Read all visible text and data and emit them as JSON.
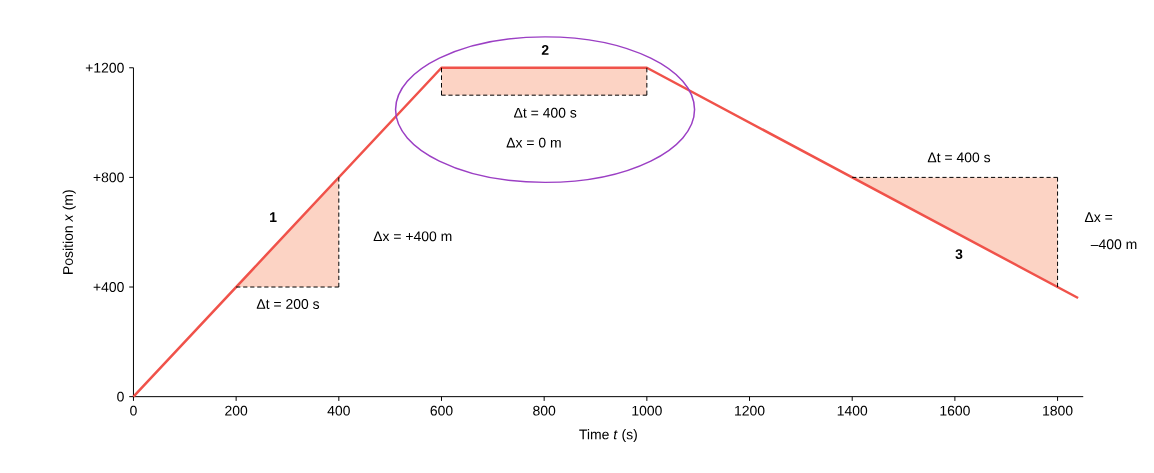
{
  "chart_data": {
    "type": "line",
    "xlabel": "Time *t* (s)",
    "ylabel": "Position *x* (m)",
    "xlim": [
      0,
      1850
    ],
    "ylim": [
      0,
      1200
    ],
    "xticks": [
      0,
      200,
      400,
      600,
      800,
      1000,
      1200,
      1400,
      1600,
      1800
    ],
    "yticks": [
      0,
      {
        "value": 400,
        "label": "+400"
      },
      {
        "value": 800,
        "label": "+800"
      },
      {
        "value": 1200,
        "label": "+1200"
      }
    ],
    "grid": false,
    "marker": "none",
    "series": [
      {
        "color": "#f0524a",
        "x": [
          0,
          600,
          1000,
          1840
        ],
        "values": [
          0,
          1200,
          1200,
          360
        ],
        "line_style": "solid"
      },
      {
        "color": "#000000",
        "x": [
          200,
          400
        ],
        "values": [
          400,
          400
        ],
        "lower": [
          400,
          400
        ],
        "upper": [
          400,
          800
        ],
        "line_style": "dashed"
      },
      {
        "color": "#000000",
        "x": [
          400,
          400
        ],
        "values": [
          400,
          800
        ],
        "line_style": "dashed"
      },
      {
        "color": "#000000",
        "x": [
          600,
          1000
        ],
        "values": [
          1100,
          1100
        ],
        "lower": [
          1100,
          1100
        ],
        "upper": [
          1200,
          1200
        ],
        "line_style": "dashed"
      },
      {
        "color": "#000000",
        "x": [
          600,
          600
        ],
        "values": [
          1100,
          1200
        ],
        "line_style": "dashed"
      },
      {
        "color": "#000000",
        "x": [
          1000,
          1000
        ],
        "values": [
          1100,
          1200
        ],
        "line_style": "dashed"
      },
      {
        "color": "#000000",
        "x": [
          1400,
          1800
        ],
        "values": [
          800,
          800
        ],
        "lower": [
          800,
          400
        ],
        "upper": [
          800,
          800
        ],
        "line_style": "dashed"
      },
      {
        "color": "#000000",
        "x": [
          1800,
          1800
        ],
        "values": [
          400,
          800
        ],
        "line_style": "dashed"
      }
    ],
    "annotations": [
      "**1**",
      "**2**",
      "**3**",
      "Δt = 200 s",
      "Δx = +400 m",
      "Δt = 400 s",
      "Δx = 0 m",
      "Δt = 400 s",
      "Δx =",
      "–400 m"
    ]
  }
}
